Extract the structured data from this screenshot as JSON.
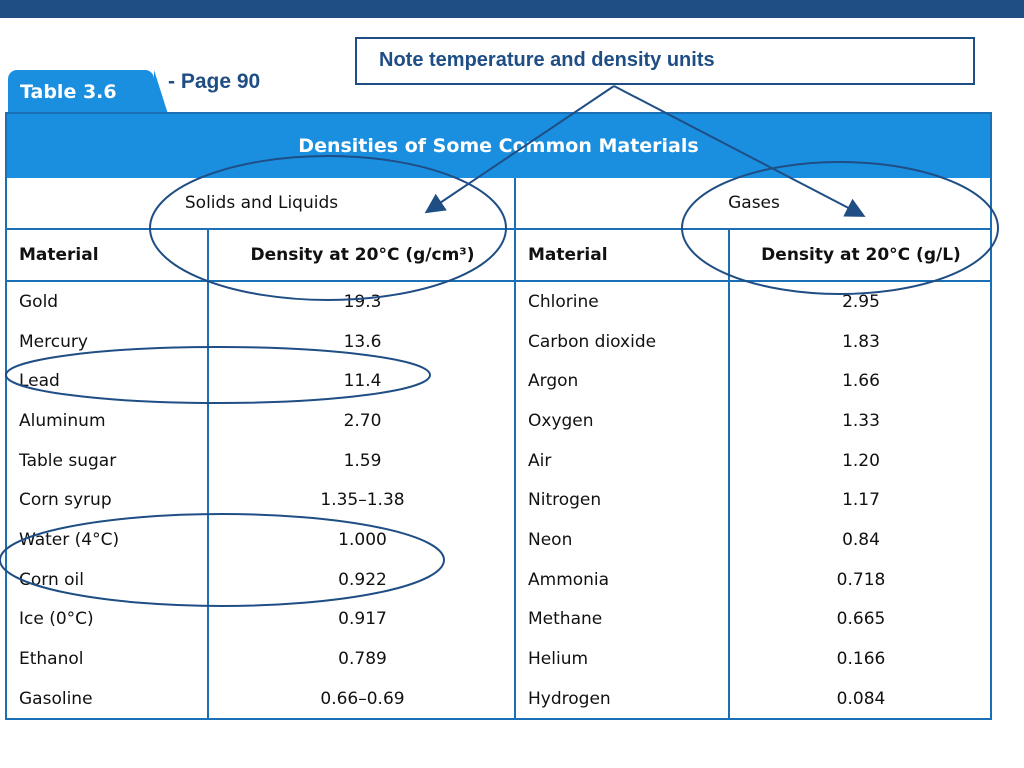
{
  "note": "Note temperature and density units",
  "tab_label": "Table 3.6",
  "page_ref": "- Page 90",
  "table": {
    "title": "Densities of Some Common Materials",
    "groups": {
      "left": "Solids and Liquids",
      "right": "Gases"
    },
    "columns": [
      "Material",
      "Density at 20°C (g/cm³)",
      "Material",
      "Density at 20°C (g/L)"
    ],
    "rows": [
      [
        "Gold",
        "19.3",
        "Chlorine",
        "2.95"
      ],
      [
        "Mercury",
        "13.6",
        "Carbon dioxide",
        "1.83"
      ],
      [
        "Lead",
        "11.4",
        "Argon",
        "1.66"
      ],
      [
        "Aluminum",
        "2.70",
        "Oxygen",
        "1.33"
      ],
      [
        "Table sugar",
        "1.59",
        "Air",
        "1.20"
      ],
      [
        "Corn syrup",
        "1.35–1.38",
        "Nitrogen",
        "1.17"
      ],
      [
        "Water (4°C)",
        "1.000",
        "Neon",
        "0.84"
      ],
      [
        "Corn oil",
        "0.922",
        "Ammonia",
        "0.718"
      ],
      [
        "Ice (0°C)",
        "0.917",
        "Methane",
        "0.665"
      ],
      [
        "Ethanol",
        "0.789",
        "Helium",
        "0.166"
      ],
      [
        "Gasoline",
        "0.66–0.69",
        "Hydrogen",
        "0.084"
      ]
    ]
  },
  "annotation_color": "#1f4e85"
}
